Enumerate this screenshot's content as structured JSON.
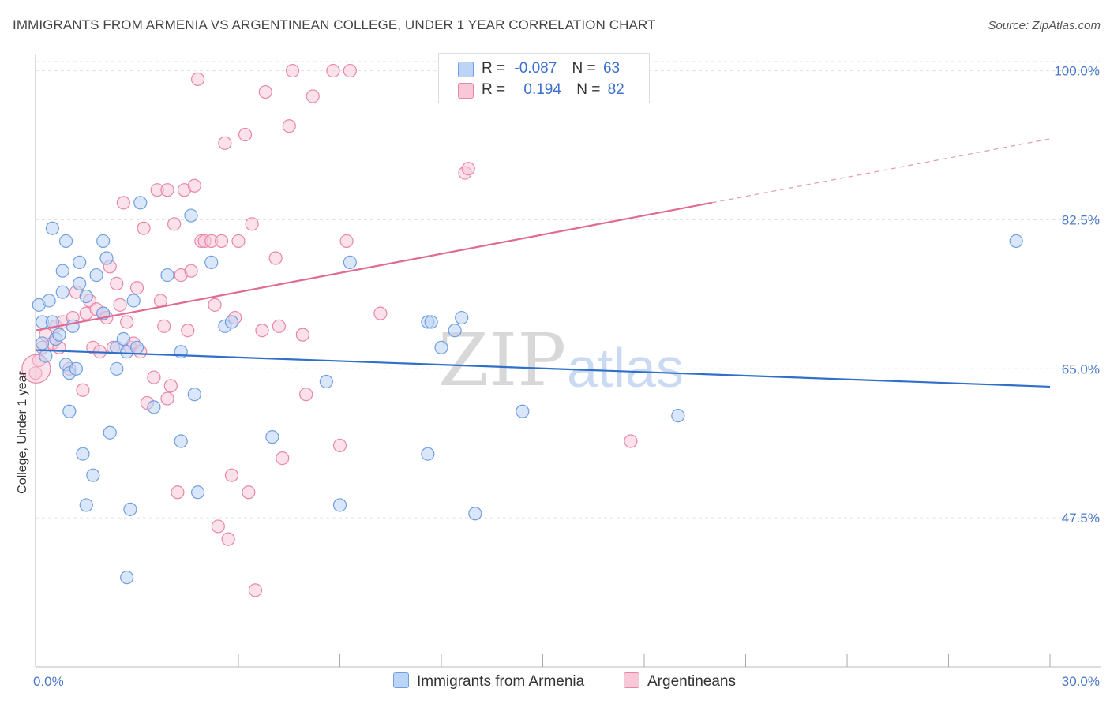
{
  "title": "IMMIGRANTS FROM ARMENIA VS ARGENTINEAN COLLEGE, UNDER 1 YEAR CORRELATION CHART",
  "source": "Source: ZipAtlas.com",
  "watermark": {
    "zip": "ZIP",
    "atlas": "atlas"
  },
  "legend": {
    "rows": [
      {
        "r_label": "R =",
        "r_value": "-0.087",
        "n_label": "N =",
        "n_value": "63",
        "color": "#a9c6f0"
      },
      {
        "r_label": "R =",
        "r_value": "0.194",
        "n_label": "N =",
        "n_value": "82",
        "color": "#f5b5cb"
      }
    ]
  },
  "bottom_legend": [
    {
      "label": "Immigrants from Armenia",
      "color": "#a9c6f0"
    },
    {
      "label": "Argentineans",
      "color": "#f5b5cb"
    }
  ],
  "chart_data": {
    "type": "scatter",
    "title": "IMMIGRANTS FROM ARMENIA VS ARGENTINEAN COLLEGE, UNDER 1 YEAR CORRELATION CHART",
    "xlabel": "",
    "ylabel": "College, Under 1 year",
    "xlim": [
      0,
      30
    ],
    "ylim": [
      30,
      102
    ],
    "x_tick_labels": [
      "0.0%",
      "30.0%"
    ],
    "y_tick_labels": [
      "100.0%",
      "82.5%",
      "65.0%",
      "47.5%"
    ],
    "y_ticks": [
      100,
      82.5,
      65,
      47.5
    ],
    "grid": true,
    "colors": {
      "blue": "#6f9fe0",
      "blue_fill": "#bcd4f5",
      "pink": "#e786a8",
      "pink_fill": "#f8c8d8",
      "blue_line": "#3070c8",
      "pink_line": "#e06a94"
    },
    "series": [
      {
        "name": "Immigrants from Armenia",
        "trend": {
          "x0": 0,
          "y0": 67.2,
          "x1": 30,
          "y1": 62.9,
          "dashed_from": 30
        },
        "points": [
          [
            0.1,
            72.5
          ],
          [
            0.2,
            70.5
          ],
          [
            0.2,
            68.0
          ],
          [
            0.3,
            66.5
          ],
          [
            0.4,
            73.0
          ],
          [
            0.5,
            81.5
          ],
          [
            0.5,
            70.5
          ],
          [
            0.6,
            68.5
          ],
          [
            0.7,
            69.0
          ],
          [
            0.8,
            74.0
          ],
          [
            0.8,
            76.5
          ],
          [
            0.9,
            80.0
          ],
          [
            0.9,
            65.5
          ],
          [
            1.0,
            60.0
          ],
          [
            1.0,
            64.5
          ],
          [
            1.1,
            70.0
          ],
          [
            1.2,
            65.0
          ],
          [
            1.3,
            75.0
          ],
          [
            1.3,
            77.5
          ],
          [
            1.4,
            55.0
          ],
          [
            1.5,
            49.0
          ],
          [
            1.5,
            73.5
          ],
          [
            1.7,
            52.5
          ],
          [
            1.8,
            76.0
          ],
          [
            2.0,
            80.0
          ],
          [
            2.0,
            71.5
          ],
          [
            2.1,
            78.0
          ],
          [
            2.2,
            57.5
          ],
          [
            2.4,
            67.5
          ],
          [
            2.4,
            65.0
          ],
          [
            2.6,
            68.5
          ],
          [
            2.7,
            40.5
          ],
          [
            2.7,
            67.0
          ],
          [
            2.8,
            48.5
          ],
          [
            2.9,
            73.0
          ],
          [
            3.0,
            67.5
          ],
          [
            3.1,
            84.5
          ],
          [
            3.5,
            60.5
          ],
          [
            3.9,
            76.0
          ],
          [
            4.3,
            67.0
          ],
          [
            4.3,
            56.5
          ],
          [
            4.6,
            83.0
          ],
          [
            4.7,
            62.0
          ],
          [
            4.8,
            50.5
          ],
          [
            5.2,
            77.5
          ],
          [
            5.6,
            70.0
          ],
          [
            5.8,
            70.5
          ],
          [
            7.0,
            57.0
          ],
          [
            8.6,
            63.5
          ],
          [
            9.0,
            49.0
          ],
          [
            9.3,
            77.5
          ],
          [
            11.6,
            55.0
          ],
          [
            11.6,
            70.5
          ],
          [
            11.7,
            70.5
          ],
          [
            12.0,
            67.5
          ],
          [
            12.4,
            69.5
          ],
          [
            12.6,
            71.0
          ],
          [
            13.0,
            48.0
          ],
          [
            14.4,
            60.0
          ],
          [
            19.0,
            59.5
          ],
          [
            29.0,
            80.0
          ]
        ]
      },
      {
        "name": "Argentineans",
        "trend": {
          "x0": 0,
          "y0": 69.5,
          "x1": 20.0,
          "y1": 84.5,
          "dashed_from": 20.0,
          "dash_end_x": 30,
          "dash_end_y": 92.0
        },
        "points": [
          [
            0.0,
            64.5
          ],
          [
            0.1,
            66.0
          ],
          [
            0.2,
            67.5
          ],
          [
            0.3,
            69.0
          ],
          [
            0.5,
            68.0
          ],
          [
            0.6,
            70.0
          ],
          [
            0.7,
            67.5
          ],
          [
            0.8,
            70.5
          ],
          [
            1.0,
            65.0
          ],
          [
            1.1,
            71.0
          ],
          [
            1.2,
            74.0
          ],
          [
            1.4,
            62.5
          ],
          [
            1.5,
            71.5
          ],
          [
            1.6,
            73.0
          ],
          [
            1.7,
            67.5
          ],
          [
            1.8,
            72.0
          ],
          [
            1.9,
            67.0
          ],
          [
            2.0,
            71.5
          ],
          [
            2.1,
            71.0
          ],
          [
            2.2,
            77.0
          ],
          [
            2.3,
            67.5
          ],
          [
            2.4,
            75.0
          ],
          [
            2.5,
            72.5
          ],
          [
            2.6,
            84.5
          ],
          [
            2.7,
            70.5
          ],
          [
            2.8,
            67.5
          ],
          [
            2.9,
            68.0
          ],
          [
            3.0,
            74.5
          ],
          [
            3.1,
            67.0
          ],
          [
            3.2,
            81.5
          ],
          [
            3.3,
            61.0
          ],
          [
            3.5,
            64.0
          ],
          [
            3.6,
            86.0
          ],
          [
            3.7,
            73.0
          ],
          [
            3.8,
            70.0
          ],
          [
            3.9,
            61.5
          ],
          [
            3.9,
            86.0
          ],
          [
            4.0,
            63.0
          ],
          [
            4.1,
            82.0
          ],
          [
            4.2,
            50.5
          ],
          [
            4.3,
            76.0
          ],
          [
            4.4,
            86.0
          ],
          [
            4.5,
            69.5
          ],
          [
            4.6,
            76.5
          ],
          [
            4.7,
            86.5
          ],
          [
            4.8,
            99.0
          ],
          [
            4.9,
            80.0
          ],
          [
            5.0,
            80.0
          ],
          [
            5.2,
            80.0
          ],
          [
            5.3,
            72.5
          ],
          [
            5.4,
            46.5
          ],
          [
            5.5,
            80.0
          ],
          [
            5.6,
            91.5
          ],
          [
            5.7,
            45.0
          ],
          [
            5.8,
            52.5
          ],
          [
            5.9,
            71.0
          ],
          [
            6.0,
            80.0
          ],
          [
            6.2,
            92.5
          ],
          [
            6.3,
            50.5
          ],
          [
            6.4,
            82.0
          ],
          [
            6.5,
            39.0
          ],
          [
            6.7,
            69.5
          ],
          [
            6.8,
            97.5
          ],
          [
            7.1,
            78.0
          ],
          [
            7.2,
            70.0
          ],
          [
            7.3,
            54.5
          ],
          [
            7.5,
            93.5
          ],
          [
            7.6,
            100.0
          ],
          [
            7.9,
            69.0
          ],
          [
            8.0,
            62.0
          ],
          [
            8.2,
            97.0
          ],
          [
            8.8,
            100.0
          ],
          [
            9.0,
            56.0
          ],
          [
            9.2,
            80.0
          ],
          [
            9.3,
            100.0
          ],
          [
            10.2,
            71.5
          ],
          [
            12.7,
            88.0
          ],
          [
            12.8,
            88.5
          ],
          [
            17.6,
            56.5
          ]
        ]
      }
    ]
  }
}
